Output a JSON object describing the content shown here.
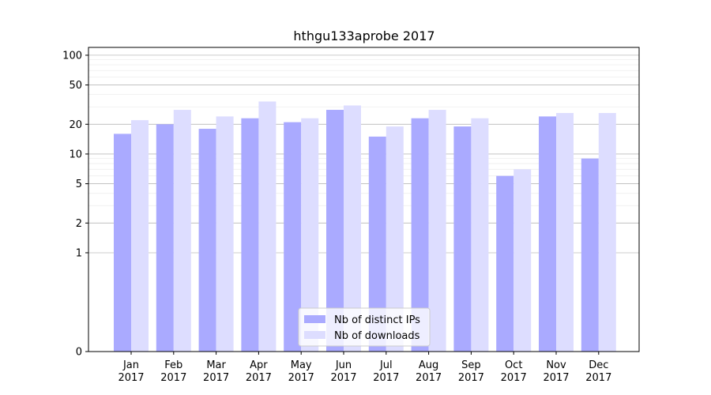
{
  "chart_data": {
    "type": "bar",
    "title": "hthgu133aprobe 2017",
    "xlabel": "",
    "ylabel": "",
    "y_scale": "symlog",
    "ylim": [
      0,
      120
    ],
    "yticks": [
      0,
      1,
      2,
      5,
      10,
      20,
      50,
      100
    ],
    "ytick_labels": [
      "0",
      "1",
      "2",
      "5",
      "10",
      "20",
      "50",
      "100"
    ],
    "categories": [
      [
        "Jan",
        "2017"
      ],
      [
        "Feb",
        "2017"
      ],
      [
        "Mar",
        "2017"
      ],
      [
        "Apr",
        "2017"
      ],
      [
        "May",
        "2017"
      ],
      [
        "Jun",
        "2017"
      ],
      [
        "Jul",
        "2017"
      ],
      [
        "Aug",
        "2017"
      ],
      [
        "Sep",
        "2017"
      ],
      [
        "Oct",
        "2017"
      ],
      [
        "Nov",
        "2017"
      ],
      [
        "Dec",
        "2017"
      ]
    ],
    "series": [
      {
        "name": "Nb of distinct IPs",
        "color": "#aaaaff",
        "values": [
          16,
          20,
          18,
          23,
          21,
          28,
          15,
          23,
          19,
          6,
          24,
          9
        ]
      },
      {
        "name": "Nb of downloads",
        "color": "#ddddff",
        "values": [
          22,
          28,
          24,
          34,
          23,
          31,
          19,
          28,
          23,
          7,
          26,
          26
        ]
      }
    ],
    "grid": true,
    "legend_position": "bottom-center"
  }
}
